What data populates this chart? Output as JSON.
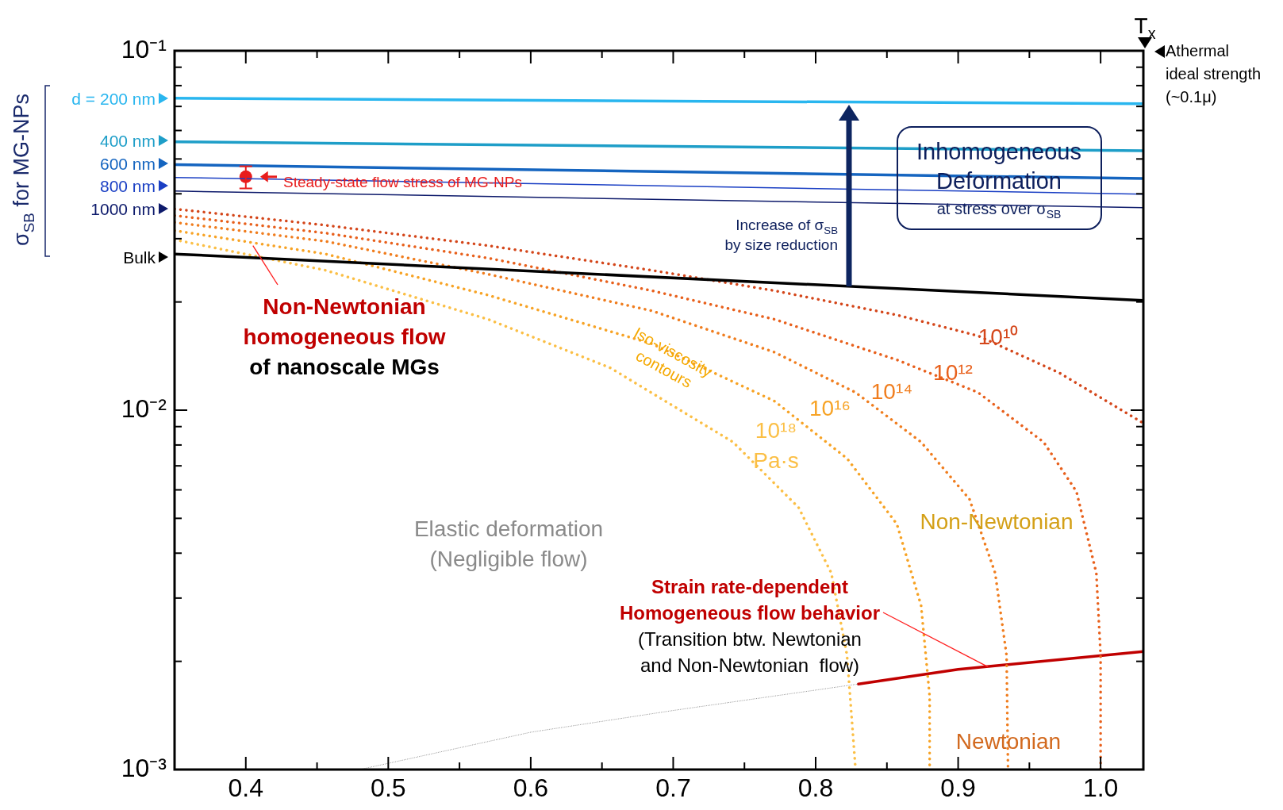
{
  "chart_data": {
    "type": "line",
    "log": "y",
    "grid": false,
    "legend": "left",
    "marker": "none",
    "xlim": [
      0.35,
      1.03
    ],
    "xticks": [
      0.4,
      {
        "value": 0.45,
        "label": null
      },
      0.5,
      {
        "value": 0.55,
        "label": null
      },
      0.6,
      {
        "value": 0.65,
        "label": null
      },
      0.7,
      {
        "value": 0.75,
        "label": null
      },
      0.8,
      {
        "value": 0.85,
        "label": null
      },
      0.9,
      {
        "value": 0.95,
        "label": null
      },
      {
        "value": 1,
        "label": "1.0"
      }
    ],
    "ylim": [
      0.001,
      0.1
    ],
    "yticks": [
      {
        "value": 0.001,
        "label": "10⁻³"
      },
      {
        "value": 0.002,
        "label": null
      },
      {
        "value": 0.003,
        "label": null
      },
      {
        "value": 0.004,
        "label": null
      },
      {
        "value": 0.005,
        "label": null
      },
      {
        "value": 0.006,
        "label": null
      },
      {
        "value": 0.007,
        "label": null
      },
      {
        "value": 0.008,
        "label": null
      },
      {
        "value": 0.009,
        "label": null
      },
      {
        "value": 0.01,
        "label": "10⁻²"
      },
      {
        "value": 0.02,
        "label": null
      },
      {
        "value": 0.03,
        "label": null
      },
      {
        "value": 0.04,
        "label": null
      },
      {
        "value": 0.05,
        "label": null
      },
      {
        "value": 0.06,
        "label": null
      },
      {
        "value": 0.07,
        "label": null
      },
      {
        "value": 0.08,
        "label": null
      },
      {
        "value": 0.09,
        "label": null
      },
      {
        "value": 0.1,
        "label": "10⁻¹"
      }
    ],
    "ylabel": "σ$_{SB}$ for MG-NPs",
    "annotations": [
      "T$_{x}$",
      "Athermal ideal strength (~0.1μ)",
      "Inhomogeneous Deformation",
      "at stress over σ$_{SB}$",
      "Increase of σ$_{SB}$ by size reduction",
      {
        "text": "Non-Newtonian homogeneous flow",
        "x": 0.405,
        "y": 0.0287
      },
      "of nanoscale MGs",
      "Iso-viscosity contours",
      "Elastic deformation (Negligible flow)",
      "Non-Newtonian",
      {
        "text": "Strain rate-dependent Homogeneous flow behavior",
        "x": 0.921,
        "y": 0.00193
      },
      "(Transition btw. Newtonian and Non-Newtonian  flow)",
      "Newtonian"
    ],
    "series": [
      {
        "name": "d = 200 nm",
        "color": "#29b6ef",
        "x": [
          0.35,
          1.03
        ],
        "values": [
          0.0738,
          0.0712
        ]
      },
      {
        "name": "400 nm",
        "color": "#1e9ec8",
        "x": [
          0.35,
          1.03
        ],
        "values": [
          0.0558,
          0.0527
        ]
      },
      {
        "name": "600 nm",
        "color": "#1565c0",
        "x": [
          0.35,
          1.03
        ],
        "values": [
          0.0482,
          0.0441
        ]
      },
      {
        "name": "800 nm",
        "color": "#1a3fc4",
        "x": [
          0.35,
          1.03
        ],
        "values": [
          0.0444,
          0.0399
        ]
      },
      {
        "name": "1000 nm",
        "color": "#0d1a6b",
        "x": [
          0.35,
          1.03
        ],
        "values": [
          0.0407,
          0.0366
        ]
      },
      {
        "name": "Bulk",
        "color": "#000000",
        "x": [
          0.35,
          1.03
        ],
        "values": [
          0.0272,
          0.0202
        ]
      },
      {
        "name": "10¹⁰",
        "color": "#d4461a",
        "line_style": "dotted",
        "x": [
          0.35,
          0.456,
          0.57,
          0.685,
          0.771,
          0.857,
          0.914,
          0.971,
          1.03
        ],
        "values": [
          0.0363,
          0.0327,
          0.0287,
          0.0245,
          0.0215,
          0.0184,
          0.0161,
          0.0127,
          0.0092
        ]
      },
      {
        "name": "10¹²",
        "color": "#e8601c",
        "line_style": "dotted",
        "x": [
          0.35,
          0.456,
          0.57,
          0.685,
          0.771,
          0.857,
          0.914,
          0.96,
          0.983,
          0.997,
          1.0,
          1.0
        ],
        "values": [
          0.0348,
          0.0311,
          0.0265,
          0.0215,
          0.0179,
          0.0138,
          0.0112,
          0.00815,
          0.00594,
          0.00352,
          0.00208,
          0.001
        ]
      },
      {
        "name": "10¹⁴",
        "color": "#f07d1e",
        "line_style": "dotted",
        "x": [
          0.35,
          0.456,
          0.57,
          0.685,
          0.771,
          0.828,
          0.874,
          0.908,
          0.926,
          0.934,
          0.935
        ],
        "values": [
          0.0333,
          0.0295,
          0.0239,
          0.0189,
          0.0145,
          0.0112,
          0.00815,
          0.00565,
          0.00352,
          0.00208,
          0.001
        ]
      },
      {
        "name": "10¹⁶",
        "color": "#f7a325",
        "line_style": "dotted",
        "x": [
          0.35,
          0.456,
          0.57,
          0.685,
          0.771,
          0.822,
          0.857,
          0.874,
          0.88,
          0.88
        ],
        "values": [
          0.0316,
          0.0272,
          0.0209,
          0.0153,
          0.0106,
          0.00734,
          0.00482,
          0.00286,
          0.0016,
          0.001
        ]
      },
      {
        "name": "10¹⁸ Pa·s",
        "color": "#fbbf45",
        "line_style": "dotted",
        "x": [
          0.35,
          0.456,
          0.57,
          0.656,
          0.742,
          0.788,
          0.811,
          0.822,
          0.828
        ],
        "values": [
          0.0298,
          0.0245,
          0.0179,
          0.0131,
          0.00815,
          0.00536,
          0.00352,
          0.00208,
          0.001
        ]
      },
      {
        "color": "#8a8a8a",
        "line_style": "dotted",
        "x": [
          0.48,
          0.6,
          0.7,
          0.83
        ],
        "values": [
          0.001,
          0.00127,
          0.00146,
          0.00173
        ]
      },
      {
        "color": "#c00000",
        "x": [
          0.83,
          0.9,
          1.03
        ],
        "values": [
          0.00173,
          0.0019,
          0.00213
        ]
      },
      {
        "name": "Steady-state flow stress of MG-NPs",
        "marker": "circle",
        "color": "#e81c1c",
        "x": [
          0.4
        ],
        "values": [
          0.0446
        ],
        "errors": [
          [
            0.0414,
            0.0477
          ]
        ]
      }
    ]
  }
}
